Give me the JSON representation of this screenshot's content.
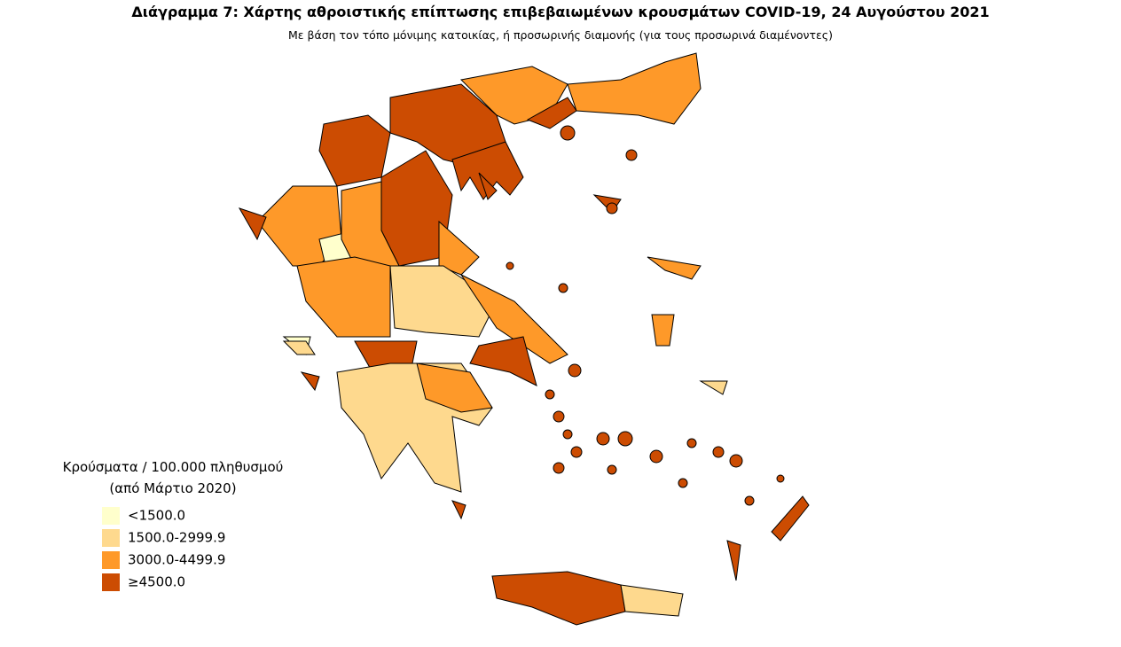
{
  "header": {
    "title": "Διάγραμμα 7: Χάρτης αθροιστικής επίπτωσης επιβεβαιωμένων κρουσμάτων COVID-19, 24 Αυγούστου 2021",
    "subtitle": "Με βάση τον τόπο μόνιμης κατοικίας, ή προσωρινής διαμονής (για τους προσωρινά διαμένοντες)"
  },
  "legend": {
    "title": "Κρούσματα / 100.000 πληθυσμού",
    "subtitle": "(από Μάρτιο 2020)",
    "items": [
      {
        "label": "<1500.0",
        "color": "#ffffcc"
      },
      {
        "label": "1500.0-2999.9",
        "color": "#fed98e"
      },
      {
        "label": "3000.0-4499.9",
        "color": "#fe9929"
      },
      {
        "label": "≥4500.0",
        "color": "#cc4c02"
      }
    ]
  }
}
